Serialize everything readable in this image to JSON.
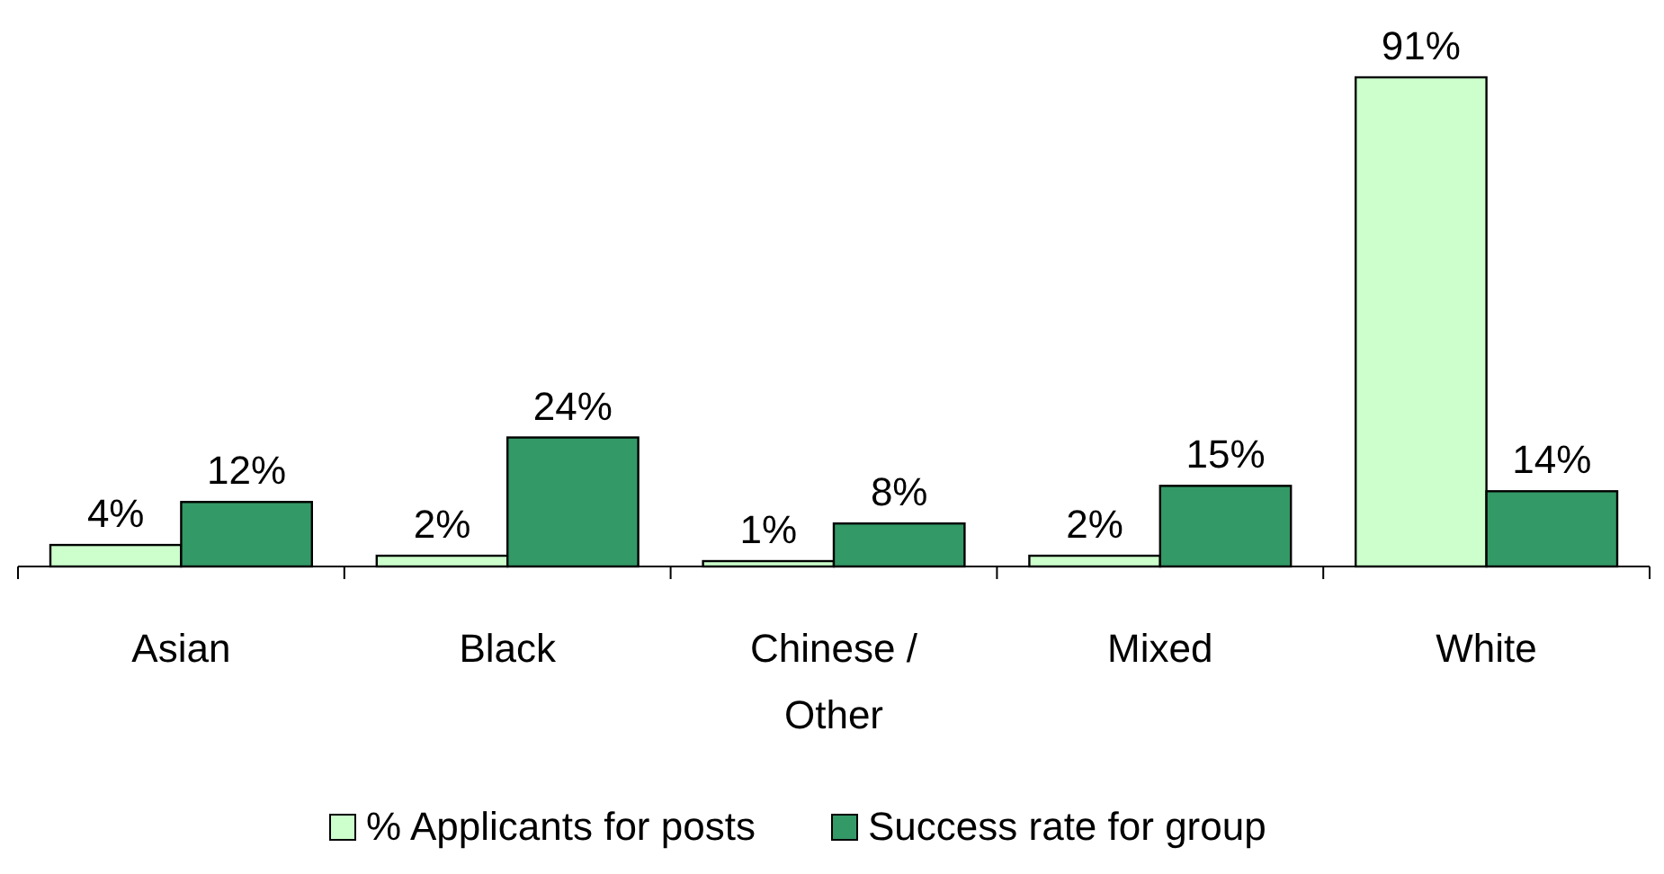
{
  "chart_data": {
    "type": "bar",
    "categories": [
      "Asian",
      "Black",
      "Chinese / Other",
      "Mixed",
      "White"
    ],
    "series": [
      {
        "name": "% Applicants for posts",
        "color": "#ccffcc",
        "values": [
          4,
          2,
          1,
          2,
          91
        ],
        "value_labels": [
          "4%",
          "2%",
          "1%",
          "2%",
          "91%"
        ]
      },
      {
        "name": "Success rate for group",
        "color": "#339966",
        "values": [
          12,
          24,
          8,
          15,
          14
        ],
        "value_labels": [
          "12%",
          "24%",
          "8%",
          "15%",
          "14%"
        ]
      }
    ],
    "legend": "bottom"
  }
}
